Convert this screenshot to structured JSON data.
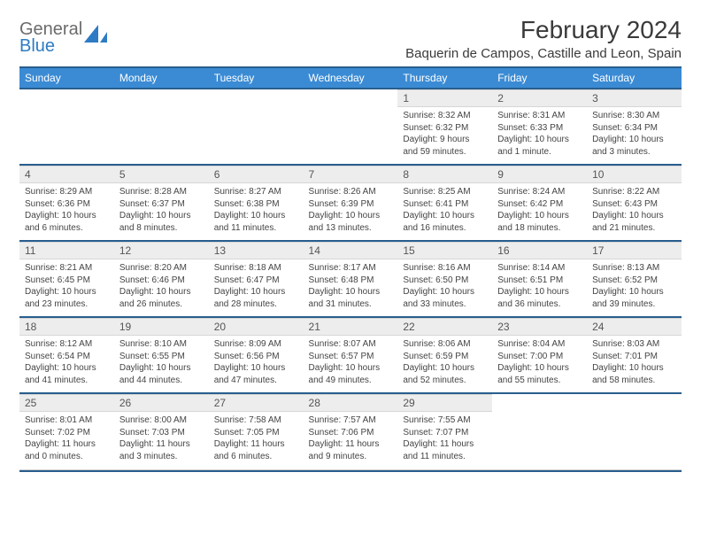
{
  "logo": {
    "word1": "General",
    "word2": "Blue"
  },
  "title": "February 2024",
  "location": "Baquerin de Campos, Castille and Leon, Spain",
  "colors": {
    "header_bg": "#3b8bd4",
    "header_border": "#285e8e",
    "daynum_bg": "#ededed",
    "text": "#333333",
    "logo_gray": "#6b6b6b",
    "logo_blue": "#2d7bc4"
  },
  "weekdays": [
    "Sunday",
    "Monday",
    "Tuesday",
    "Wednesday",
    "Thursday",
    "Friday",
    "Saturday"
  ],
  "weeks": [
    [
      null,
      null,
      null,
      null,
      {
        "n": "1",
        "sr": "Sunrise: 8:32 AM",
        "ss": "Sunset: 6:32 PM",
        "d1": "Daylight: 9 hours",
        "d2": "and 59 minutes."
      },
      {
        "n": "2",
        "sr": "Sunrise: 8:31 AM",
        "ss": "Sunset: 6:33 PM",
        "d1": "Daylight: 10 hours",
        "d2": "and 1 minute."
      },
      {
        "n": "3",
        "sr": "Sunrise: 8:30 AM",
        "ss": "Sunset: 6:34 PM",
        "d1": "Daylight: 10 hours",
        "d2": "and 3 minutes."
      }
    ],
    [
      {
        "n": "4",
        "sr": "Sunrise: 8:29 AM",
        "ss": "Sunset: 6:36 PM",
        "d1": "Daylight: 10 hours",
        "d2": "and 6 minutes."
      },
      {
        "n": "5",
        "sr": "Sunrise: 8:28 AM",
        "ss": "Sunset: 6:37 PM",
        "d1": "Daylight: 10 hours",
        "d2": "and 8 minutes."
      },
      {
        "n": "6",
        "sr": "Sunrise: 8:27 AM",
        "ss": "Sunset: 6:38 PM",
        "d1": "Daylight: 10 hours",
        "d2": "and 11 minutes."
      },
      {
        "n": "7",
        "sr": "Sunrise: 8:26 AM",
        "ss": "Sunset: 6:39 PM",
        "d1": "Daylight: 10 hours",
        "d2": "and 13 minutes."
      },
      {
        "n": "8",
        "sr": "Sunrise: 8:25 AM",
        "ss": "Sunset: 6:41 PM",
        "d1": "Daylight: 10 hours",
        "d2": "and 16 minutes."
      },
      {
        "n": "9",
        "sr": "Sunrise: 8:24 AM",
        "ss": "Sunset: 6:42 PM",
        "d1": "Daylight: 10 hours",
        "d2": "and 18 minutes."
      },
      {
        "n": "10",
        "sr": "Sunrise: 8:22 AM",
        "ss": "Sunset: 6:43 PM",
        "d1": "Daylight: 10 hours",
        "d2": "and 21 minutes."
      }
    ],
    [
      {
        "n": "11",
        "sr": "Sunrise: 8:21 AM",
        "ss": "Sunset: 6:45 PM",
        "d1": "Daylight: 10 hours",
        "d2": "and 23 minutes."
      },
      {
        "n": "12",
        "sr": "Sunrise: 8:20 AM",
        "ss": "Sunset: 6:46 PM",
        "d1": "Daylight: 10 hours",
        "d2": "and 26 minutes."
      },
      {
        "n": "13",
        "sr": "Sunrise: 8:18 AM",
        "ss": "Sunset: 6:47 PM",
        "d1": "Daylight: 10 hours",
        "d2": "and 28 minutes."
      },
      {
        "n": "14",
        "sr": "Sunrise: 8:17 AM",
        "ss": "Sunset: 6:48 PM",
        "d1": "Daylight: 10 hours",
        "d2": "and 31 minutes."
      },
      {
        "n": "15",
        "sr": "Sunrise: 8:16 AM",
        "ss": "Sunset: 6:50 PM",
        "d1": "Daylight: 10 hours",
        "d2": "and 33 minutes."
      },
      {
        "n": "16",
        "sr": "Sunrise: 8:14 AM",
        "ss": "Sunset: 6:51 PM",
        "d1": "Daylight: 10 hours",
        "d2": "and 36 minutes."
      },
      {
        "n": "17",
        "sr": "Sunrise: 8:13 AM",
        "ss": "Sunset: 6:52 PM",
        "d1": "Daylight: 10 hours",
        "d2": "and 39 minutes."
      }
    ],
    [
      {
        "n": "18",
        "sr": "Sunrise: 8:12 AM",
        "ss": "Sunset: 6:54 PM",
        "d1": "Daylight: 10 hours",
        "d2": "and 41 minutes."
      },
      {
        "n": "19",
        "sr": "Sunrise: 8:10 AM",
        "ss": "Sunset: 6:55 PM",
        "d1": "Daylight: 10 hours",
        "d2": "and 44 minutes."
      },
      {
        "n": "20",
        "sr": "Sunrise: 8:09 AM",
        "ss": "Sunset: 6:56 PM",
        "d1": "Daylight: 10 hours",
        "d2": "and 47 minutes."
      },
      {
        "n": "21",
        "sr": "Sunrise: 8:07 AM",
        "ss": "Sunset: 6:57 PM",
        "d1": "Daylight: 10 hours",
        "d2": "and 49 minutes."
      },
      {
        "n": "22",
        "sr": "Sunrise: 8:06 AM",
        "ss": "Sunset: 6:59 PM",
        "d1": "Daylight: 10 hours",
        "d2": "and 52 minutes."
      },
      {
        "n": "23",
        "sr": "Sunrise: 8:04 AM",
        "ss": "Sunset: 7:00 PM",
        "d1": "Daylight: 10 hours",
        "d2": "and 55 minutes."
      },
      {
        "n": "24",
        "sr": "Sunrise: 8:03 AM",
        "ss": "Sunset: 7:01 PM",
        "d1": "Daylight: 10 hours",
        "d2": "and 58 minutes."
      }
    ],
    [
      {
        "n": "25",
        "sr": "Sunrise: 8:01 AM",
        "ss": "Sunset: 7:02 PM",
        "d1": "Daylight: 11 hours",
        "d2": "and 0 minutes."
      },
      {
        "n": "26",
        "sr": "Sunrise: 8:00 AM",
        "ss": "Sunset: 7:03 PM",
        "d1": "Daylight: 11 hours",
        "d2": "and 3 minutes."
      },
      {
        "n": "27",
        "sr": "Sunrise: 7:58 AM",
        "ss": "Sunset: 7:05 PM",
        "d1": "Daylight: 11 hours",
        "d2": "and 6 minutes."
      },
      {
        "n": "28",
        "sr": "Sunrise: 7:57 AM",
        "ss": "Sunset: 7:06 PM",
        "d1": "Daylight: 11 hours",
        "d2": "and 9 minutes."
      },
      {
        "n": "29",
        "sr": "Sunrise: 7:55 AM",
        "ss": "Sunset: 7:07 PM",
        "d1": "Daylight: 11 hours",
        "d2": "and 11 minutes."
      },
      null,
      null
    ]
  ]
}
